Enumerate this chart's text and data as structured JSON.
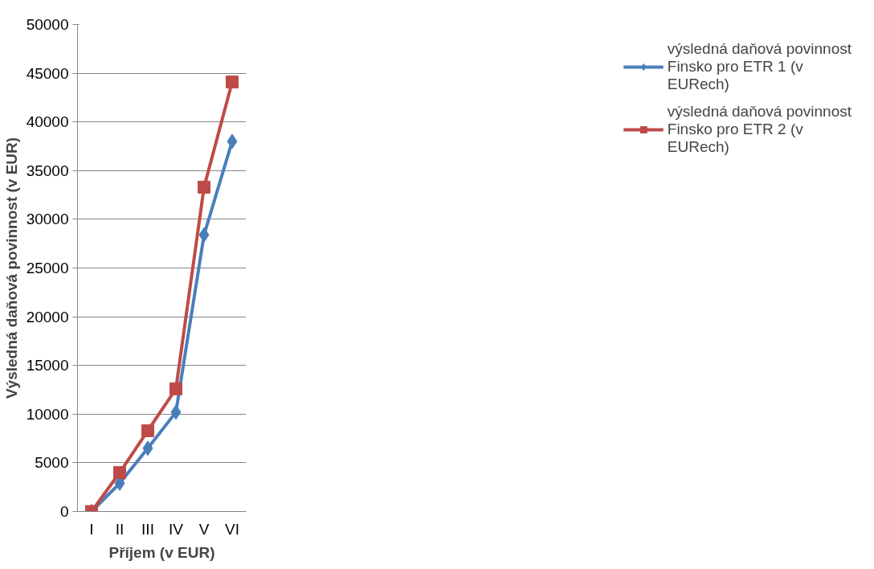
{
  "chart_data": {
    "type": "line",
    "xlabel": "Příjem (v EUR)",
    "ylabel": "Výsledná daňová povinnost (v EUR)",
    "categories": [
      "I",
      "II",
      "III",
      "IV",
      "V",
      "VI"
    ],
    "series": [
      {
        "name": "výsledná daňová povinnost Finsko pro ETR 1 (v EURech)",
        "color": "#4a7ebb",
        "marker": "diamond",
        "values": [
          0,
          2900,
          6500,
          10200,
          28400,
          38000
        ]
      },
      {
        "name": "výsledná daňová povinnost Finsko pro ETR 2 (v EURech)",
        "color": "#be4b48",
        "marker": "square",
        "values": [
          0,
          4000,
          8300,
          12600,
          33300,
          44100
        ]
      }
    ],
    "ylim": [
      0,
      50000
    ],
    "yticks": [
      0,
      5000,
      10000,
      15000,
      20000,
      25000,
      30000,
      35000,
      40000,
      45000,
      50000
    ],
    "grid": "y",
    "legend": "right",
    "line_style": "solid"
  }
}
